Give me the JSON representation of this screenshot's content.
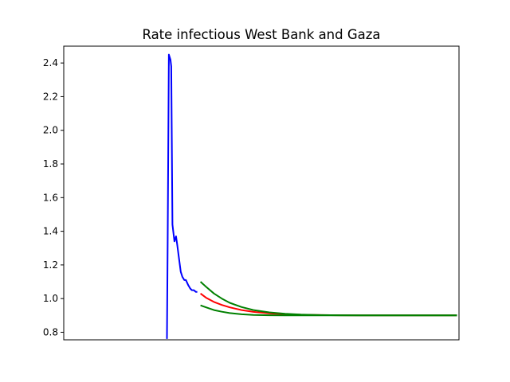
{
  "chart_data": {
    "type": "line",
    "title": "Rate infectious West Bank and Gaza",
    "xlabel": "",
    "ylabel": "",
    "x_ticks_visible": false,
    "ylim": [
      0.755,
      2.5
    ],
    "yticks": [
      0.8,
      1.0,
      1.2,
      1.4,
      1.6,
      1.8,
      2.0,
      2.2,
      2.4
    ],
    "ytick_labels": [
      "0.8",
      "1.0",
      "1.2",
      "1.4",
      "1.6",
      "1.8",
      "2.0",
      "2.2",
      "2.4"
    ],
    "grid": false,
    "xlim": [
      0,
      100
    ],
    "series": [
      {
        "color": "#0000ff",
        "x": [
          26.1,
          26.3,
          26.6,
          27.0,
          27.2,
          27.5,
          28.0,
          28.4,
          28.7,
          29.1,
          29.6,
          30.0,
          30.5,
          30.9,
          31.5,
          32.0,
          32.4,
          32.9,
          33.4,
          33.8
        ],
        "y": [
          0.76,
          1.33,
          2.45,
          2.42,
          2.38,
          1.44,
          1.34,
          1.37,
          1.32,
          1.25,
          1.16,
          1.13,
          1.11,
          1.11,
          1.08,
          1.06,
          1.05,
          1.05,
          1.04,
          1.04
        ]
      },
      {
        "color": "#ff0000",
        "x": [
          34.6,
          36,
          38,
          40,
          42,
          45,
          48,
          52,
          56,
          60,
          65,
          70,
          75,
          80,
          85,
          90,
          95,
          99.5
        ],
        "y": [
          1.03,
          1.005,
          0.98,
          0.962,
          0.948,
          0.932,
          0.921,
          0.912,
          0.907,
          0.904,
          0.902,
          0.901,
          0.9,
          0.9,
          0.9,
          0.9,
          0.9,
          0.9
        ]
      },
      {
        "color": "#008000",
        "x": [
          34.6,
          36,
          38,
          40,
          42,
          45,
          48,
          52,
          56,
          60,
          65,
          70,
          75,
          80,
          85,
          90,
          95,
          99.5
        ],
        "y": [
          1.1,
          1.07,
          1.03,
          1.0,
          0.975,
          0.95,
          0.932,
          0.918,
          0.91,
          0.905,
          0.902,
          0.901,
          0.9,
          0.9,
          0.9,
          0.9,
          0.9,
          0.9
        ]
      },
      {
        "color": "#008000",
        "x": [
          34.6,
          36,
          38,
          40,
          42,
          45,
          48,
          52,
          56,
          60,
          65,
          70,
          75,
          80,
          85,
          90,
          95,
          99.5
        ],
        "y": [
          0.96,
          0.948,
          0.932,
          0.922,
          0.914,
          0.907,
          0.903,
          0.901,
          0.9,
          0.9,
          0.9,
          0.9,
          0.9,
          0.9,
          0.9,
          0.9,
          0.9,
          0.9
        ]
      }
    ]
  }
}
